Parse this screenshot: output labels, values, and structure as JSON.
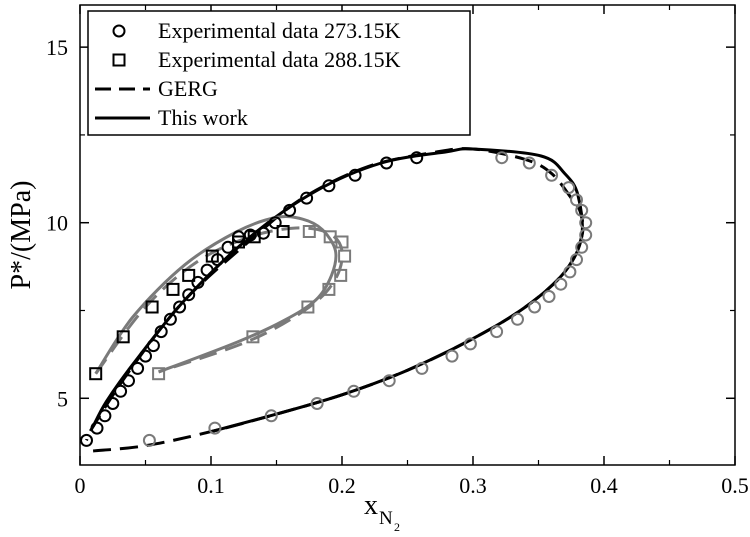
{
  "chart_data": {
    "type": "scatter",
    "title": "",
    "xlabel": "x",
    "xlabel_subscript": "N",
    "xlabel_subsubscript": "2",
    "ylabel": "P*/(MPa)",
    "xlim": [
      0,
      0.5
    ],
    "ylim": [
      3.1,
      16.2
    ],
    "x_ticks": [
      0,
      0.1,
      0.2,
      0.3,
      0.4,
      0.5
    ],
    "x_tick_labels": [
      "0",
      "0.1",
      "0.2",
      "0.3",
      "0.4",
      "0.5"
    ],
    "y_ticks": [
      5,
      10,
      15
    ],
    "y_tick_labels": [
      "5",
      "10",
      "15"
    ],
    "grid": false,
    "legend_position": "top-left",
    "legend": [
      {
        "label": "Experimental data 273.15K",
        "marker": "circle",
        "line": "none"
      },
      {
        "label": "Experimental data 288.15K",
        "marker": "square",
        "line": "none"
      },
      {
        "label": "GERG",
        "marker": "none",
        "line": "dashed"
      },
      {
        "label": "This work",
        "marker": "none",
        "line": "solid"
      }
    ],
    "colors": {
      "black": "#000000",
      "gray": "#7a7a7a"
    },
    "series": [
      {
        "kind": "points",
        "marker": "circle",
        "color": "black",
        "points": [
          [
            0.005,
            3.8
          ],
          [
            0.013,
            4.15
          ],
          [
            0.019,
            4.5
          ],
          [
            0.025,
            4.85
          ],
          [
            0.031,
            5.2
          ],
          [
            0.037,
            5.5
          ],
          [
            0.044,
            5.85
          ],
          [
            0.05,
            6.2
          ],
          [
            0.056,
            6.5
          ],
          [
            0.062,
            6.9
          ],
          [
            0.069,
            7.25
          ],
          [
            0.076,
            7.6
          ],
          [
            0.083,
            7.95
          ],
          [
            0.09,
            8.3
          ],
          [
            0.097,
            8.65
          ],
          [
            0.105,
            8.95
          ],
          [
            0.113,
            9.3
          ],
          [
            0.121,
            9.6
          ],
          [
            0.13,
            9.65
          ],
          [
            0.14,
            9.7
          ],
          [
            0.149,
            10.0
          ],
          [
            0.16,
            10.35
          ],
          [
            0.173,
            10.7
          ],
          [
            0.19,
            11.05
          ],
          [
            0.21,
            11.35
          ],
          [
            0.234,
            11.7
          ],
          [
            0.257,
            11.85
          ]
        ]
      },
      {
        "kind": "points",
        "marker": "circle",
        "color": "gray",
        "points": [
          [
            0.322,
            11.85
          ],
          [
            0.343,
            11.7
          ],
          [
            0.36,
            11.35
          ],
          [
            0.373,
            11.0
          ],
          [
            0.379,
            10.65
          ],
          [
            0.383,
            10.35
          ],
          [
            0.386,
            10.0
          ],
          [
            0.386,
            9.65
          ],
          [
            0.383,
            9.3
          ],
          [
            0.379,
            8.95
          ],
          [
            0.374,
            8.6
          ],
          [
            0.367,
            8.25
          ],
          [
            0.358,
            7.9
          ],
          [
            0.347,
            7.6
          ],
          [
            0.334,
            7.25
          ],
          [
            0.318,
            6.9
          ],
          [
            0.298,
            6.55
          ],
          [
            0.284,
            6.2
          ],
          [
            0.261,
            5.85
          ],
          [
            0.236,
            5.5
          ],
          [
            0.209,
            5.2
          ],
          [
            0.181,
            4.85
          ],
          [
            0.146,
            4.5
          ],
          [
            0.103,
            4.15
          ],
          [
            0.053,
            3.8
          ]
        ]
      },
      {
        "kind": "points",
        "marker": "square",
        "color": "black",
        "points": [
          [
            0.012,
            5.7
          ],
          [
            0.033,
            6.75
          ],
          [
            0.055,
            7.6
          ],
          [
            0.071,
            8.1
          ],
          [
            0.083,
            8.5
          ],
          [
            0.101,
            9.05
          ],
          [
            0.121,
            9.45
          ],
          [
            0.133,
            9.6
          ],
          [
            0.155,
            9.75
          ]
        ]
      },
      {
        "kind": "points",
        "marker": "square",
        "color": "gray",
        "points": [
          [
            0.175,
            9.75
          ],
          [
            0.191,
            9.6
          ],
          [
            0.2,
            9.45
          ],
          [
            0.202,
            9.05
          ],
          [
            0.199,
            8.5
          ],
          [
            0.19,
            8.1
          ],
          [
            0.174,
            7.6
          ],
          [
            0.132,
            6.75
          ],
          [
            0.06,
            5.7
          ]
        ]
      },
      {
        "kind": "line",
        "style": "dashed",
        "color": "black",
        "points": [
          [
            0.01,
            3.5
          ],
          [
            0.05,
            3.65
          ],
          [
            0.1,
            4.05
          ],
          [
            0.15,
            4.55
          ],
          [
            0.2,
            5.1
          ],
          [
            0.25,
            5.8
          ],
          [
            0.3,
            6.7
          ],
          [
            0.34,
            7.6
          ],
          [
            0.37,
            8.6
          ],
          [
            0.383,
            9.6
          ],
          [
            0.382,
            10.3
          ],
          [
            0.375,
            10.7
          ],
          [
            0.36,
            11.4
          ],
          [
            0.34,
            11.8
          ],
          [
            0.3,
            12.1
          ],
          [
            0.27,
            12.0
          ],
          [
            0.22,
            11.6
          ],
          [
            0.17,
            10.7
          ],
          [
            0.13,
            9.5
          ],
          [
            0.08,
            7.8
          ],
          [
            0.04,
            5.9
          ],
          [
            0.01,
            4.2
          ],
          [
            0.005,
            3.8
          ]
        ]
      },
      {
        "kind": "line",
        "style": "solid",
        "color": "black",
        "points": [
          [
            0.1,
            4.05
          ],
          [
            0.15,
            4.55
          ],
          [
            0.2,
            5.1
          ],
          [
            0.25,
            5.8
          ],
          [
            0.3,
            6.7
          ],
          [
            0.34,
            7.6
          ],
          [
            0.37,
            8.6
          ],
          [
            0.383,
            9.6
          ],
          [
            0.38,
            10.8
          ],
          [
            0.37,
            11.4
          ],
          [
            0.352,
            11.9
          ],
          [
            0.3,
            12.1
          ],
          [
            0.28,
            12.02
          ],
          [
            0.23,
            11.7
          ],
          [
            0.18,
            10.9
          ],
          [
            0.13,
            9.6
          ],
          [
            0.08,
            7.8
          ],
          [
            0.04,
            5.95
          ],
          [
            0.02,
            4.9
          ],
          [
            0.01,
            4.2
          ]
        ]
      },
      {
        "kind": "line",
        "style": "dashed",
        "color": "gray",
        "points": [
          [
            0.012,
            5.7
          ],
          [
            0.05,
            7.6
          ],
          [
            0.09,
            8.9
          ],
          [
            0.13,
            9.6
          ],
          [
            0.165,
            9.85
          ],
          [
            0.19,
            9.7
          ],
          [
            0.2,
            9.2
          ],
          [
            0.195,
            8.4
          ],
          [
            0.175,
            7.6
          ],
          [
            0.13,
            6.65
          ],
          [
            0.06,
            5.75
          ]
        ]
      },
      {
        "kind": "line",
        "style": "solid",
        "color": "gray",
        "points": [
          [
            0.012,
            5.7
          ],
          [
            0.04,
            7.3
          ],
          [
            0.08,
            8.8
          ],
          [
            0.12,
            9.75
          ],
          [
            0.15,
            10.15
          ],
          [
            0.17,
            10.1
          ],
          [
            0.185,
            9.8
          ],
          [
            0.195,
            9.2
          ],
          [
            0.192,
            8.5
          ],
          [
            0.18,
            7.8
          ],
          [
            0.155,
            7.2
          ],
          [
            0.12,
            6.6
          ],
          [
            0.06,
            5.75
          ]
        ]
      }
    ]
  }
}
